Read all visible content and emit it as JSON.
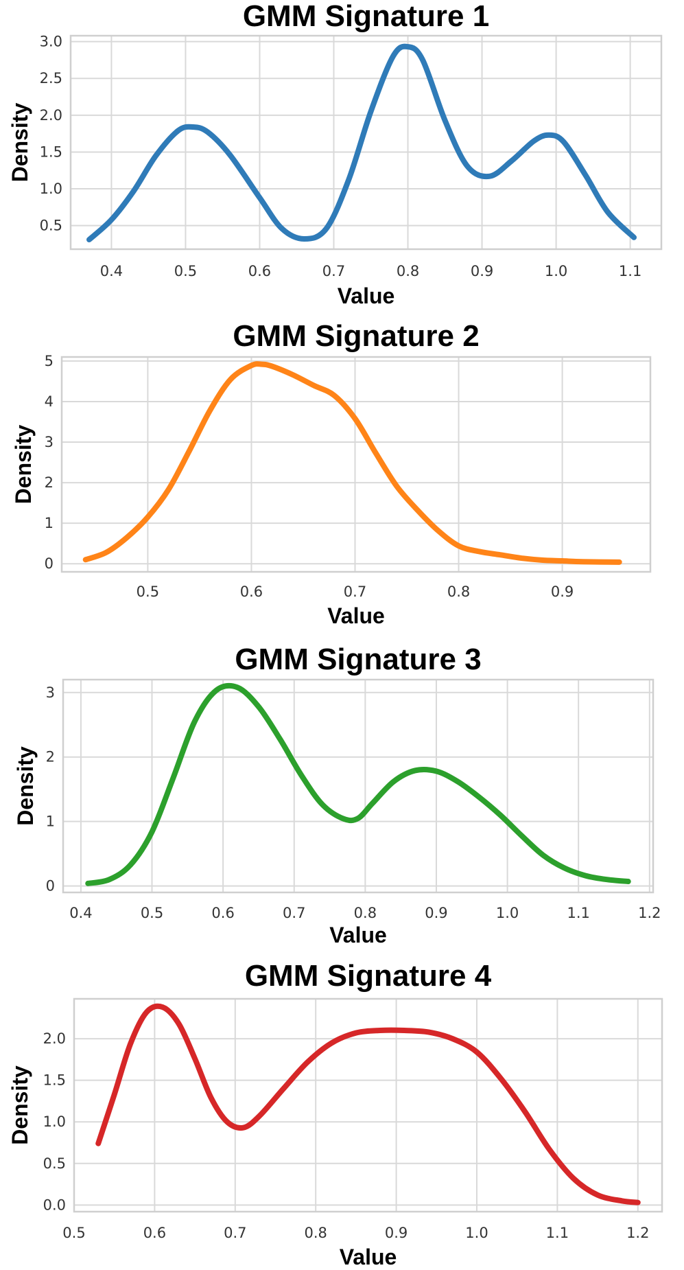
{
  "chart_data": [
    {
      "type": "line",
      "title": "GMM Signature 1",
      "xlabel": "Value",
      "ylabel": "Density",
      "xlim": [
        0.345,
        1.142
      ],
      "ylim": [
        0.18,
        3.08
      ],
      "xticks": [
        0.4,
        0.5,
        0.6,
        0.7,
        0.8,
        0.9,
        1.0,
        1.1
      ],
      "xtick_labels": [
        "0.4",
        "0.5",
        "0.6",
        "0.7",
        "0.8",
        "0.9",
        "1.0",
        "1.1"
      ],
      "yticks": [
        0.5,
        1.0,
        1.5,
        2.0,
        2.5,
        3.0
      ],
      "ytick_labels": [
        "0.5",
        "1.0",
        "1.5",
        "2.0",
        "2.5",
        "3.0"
      ],
      "grid": true,
      "color": "#2f7bb8",
      "series": [
        {
          "x": [
            0.37,
            0.4,
            0.43,
            0.46,
            0.49,
            0.51,
            0.53,
            0.56,
            0.6,
            0.63,
            0.66,
            0.69,
            0.72,
            0.75,
            0.78,
            0.8,
            0.82,
            0.85,
            0.88,
            0.91,
            0.94,
            0.97,
            0.99,
            1.01,
            1.04,
            1.07,
            1.105
          ],
          "y": [
            0.31,
            0.58,
            0.97,
            1.45,
            1.79,
            1.84,
            1.77,
            1.46,
            0.88,
            0.46,
            0.32,
            0.46,
            1.12,
            2.05,
            2.8,
            2.93,
            2.75,
            1.93,
            1.31,
            1.17,
            1.38,
            1.65,
            1.73,
            1.64,
            1.18,
            0.68,
            0.34
          ]
        }
      ]
    },
    {
      "type": "line",
      "title": "GMM Signature 2",
      "xlabel": "Value",
      "ylabel": "Density",
      "xlim": [
        0.417,
        0.985
      ],
      "ylim": [
        -0.2,
        5.1
      ],
      "xticks": [
        0.5,
        0.6,
        0.7,
        0.8,
        0.9
      ],
      "xtick_labels": [
        "0.5",
        "0.6",
        "0.7",
        "0.8",
        "0.9"
      ],
      "yticks": [
        0,
        1,
        2,
        3,
        4,
        5
      ],
      "ytick_labels": [
        "0",
        "1",
        "2",
        "3",
        "4",
        "5"
      ],
      "grid": true,
      "color": "#ff8418",
      "series": [
        {
          "x": [
            0.44,
            0.46,
            0.48,
            0.5,
            0.52,
            0.54,
            0.56,
            0.58,
            0.6,
            0.61,
            0.62,
            0.64,
            0.66,
            0.68,
            0.7,
            0.72,
            0.74,
            0.76,
            0.78,
            0.8,
            0.82,
            0.84,
            0.86,
            0.88,
            0.9,
            0.92,
            0.955
          ],
          "y": [
            0.1,
            0.28,
            0.65,
            1.15,
            1.83,
            2.78,
            3.78,
            4.55,
            4.89,
            4.92,
            4.87,
            4.66,
            4.4,
            4.15,
            3.58,
            2.73,
            1.92,
            1.33,
            0.82,
            0.44,
            0.3,
            0.22,
            0.14,
            0.09,
            0.07,
            0.05,
            0.04
          ]
        }
      ]
    },
    {
      "type": "line",
      "title": "GMM Signature 3",
      "xlabel": "Value",
      "ylabel": "Density",
      "xlim": [
        0.375,
        1.205
      ],
      "ylim": [
        -0.1,
        3.2
      ],
      "xticks": [
        0.4,
        0.5,
        0.6,
        0.7,
        0.8,
        0.9,
        1.0,
        1.1,
        1.2
      ],
      "xtick_labels": [
        "0.4",
        "0.5",
        "0.6",
        "0.7",
        "0.8",
        "0.9",
        "1.0",
        "1.1",
        "1.2"
      ],
      "yticks": [
        0,
        1,
        2,
        3
      ],
      "ytick_labels": [
        "0",
        "1",
        "2",
        "3"
      ],
      "grid": true,
      "color": "#2ca02c",
      "series": [
        {
          "x": [
            0.41,
            0.44,
            0.47,
            0.5,
            0.53,
            0.56,
            0.59,
            0.62,
            0.65,
            0.68,
            0.71,
            0.74,
            0.77,
            0.79,
            0.81,
            0.84,
            0.87,
            0.9,
            0.93,
            0.96,
            0.99,
            1.02,
            1.05,
            1.08,
            1.11,
            1.14,
            1.17
          ],
          "y": [
            0.04,
            0.1,
            0.33,
            0.84,
            1.68,
            2.55,
            3.03,
            3.08,
            2.78,
            2.28,
            1.72,
            1.26,
            1.04,
            1.05,
            1.28,
            1.62,
            1.79,
            1.78,
            1.62,
            1.38,
            1.1,
            0.78,
            0.48,
            0.28,
            0.16,
            0.1,
            0.07
          ]
        }
      ]
    },
    {
      "type": "line",
      "title": "GMM Signature 4",
      "xlabel": "Value",
      "ylabel": "Density",
      "xlim": [
        0.5,
        1.23
      ],
      "ylim": [
        -0.08,
        2.48
      ],
      "xticks": [
        0.5,
        0.6,
        0.7,
        0.8,
        0.9,
        1.0,
        1.1,
        1.2
      ],
      "xtick_labels": [
        "0.5",
        "0.6",
        "0.7",
        "0.8",
        "0.9",
        "1.0",
        "1.1",
        "1.2"
      ],
      "yticks": [
        0.0,
        0.5,
        1.0,
        1.5,
        2.0
      ],
      "ytick_labels": [
        "0.0",
        "0.5",
        "1.0",
        "1.5",
        "2.0"
      ],
      "grid": true,
      "color": "#d62728",
      "series": [
        {
          "x": [
            0.53,
            0.55,
            0.57,
            0.59,
            0.61,
            0.63,
            0.65,
            0.67,
            0.69,
            0.71,
            0.73,
            0.76,
            0.79,
            0.82,
            0.85,
            0.88,
            0.91,
            0.94,
            0.97,
            1.0,
            1.03,
            1.06,
            1.09,
            1.12,
            1.15,
            1.18,
            1.2
          ],
          "y": [
            0.74,
            1.33,
            1.94,
            2.32,
            2.38,
            2.18,
            1.76,
            1.29,
            1.0,
            0.93,
            1.07,
            1.4,
            1.72,
            1.95,
            2.07,
            2.1,
            2.1,
            2.08,
            2.0,
            1.84,
            1.52,
            1.12,
            0.67,
            0.32,
            0.12,
            0.05,
            0.03
          ]
        }
      ]
    }
  ]
}
